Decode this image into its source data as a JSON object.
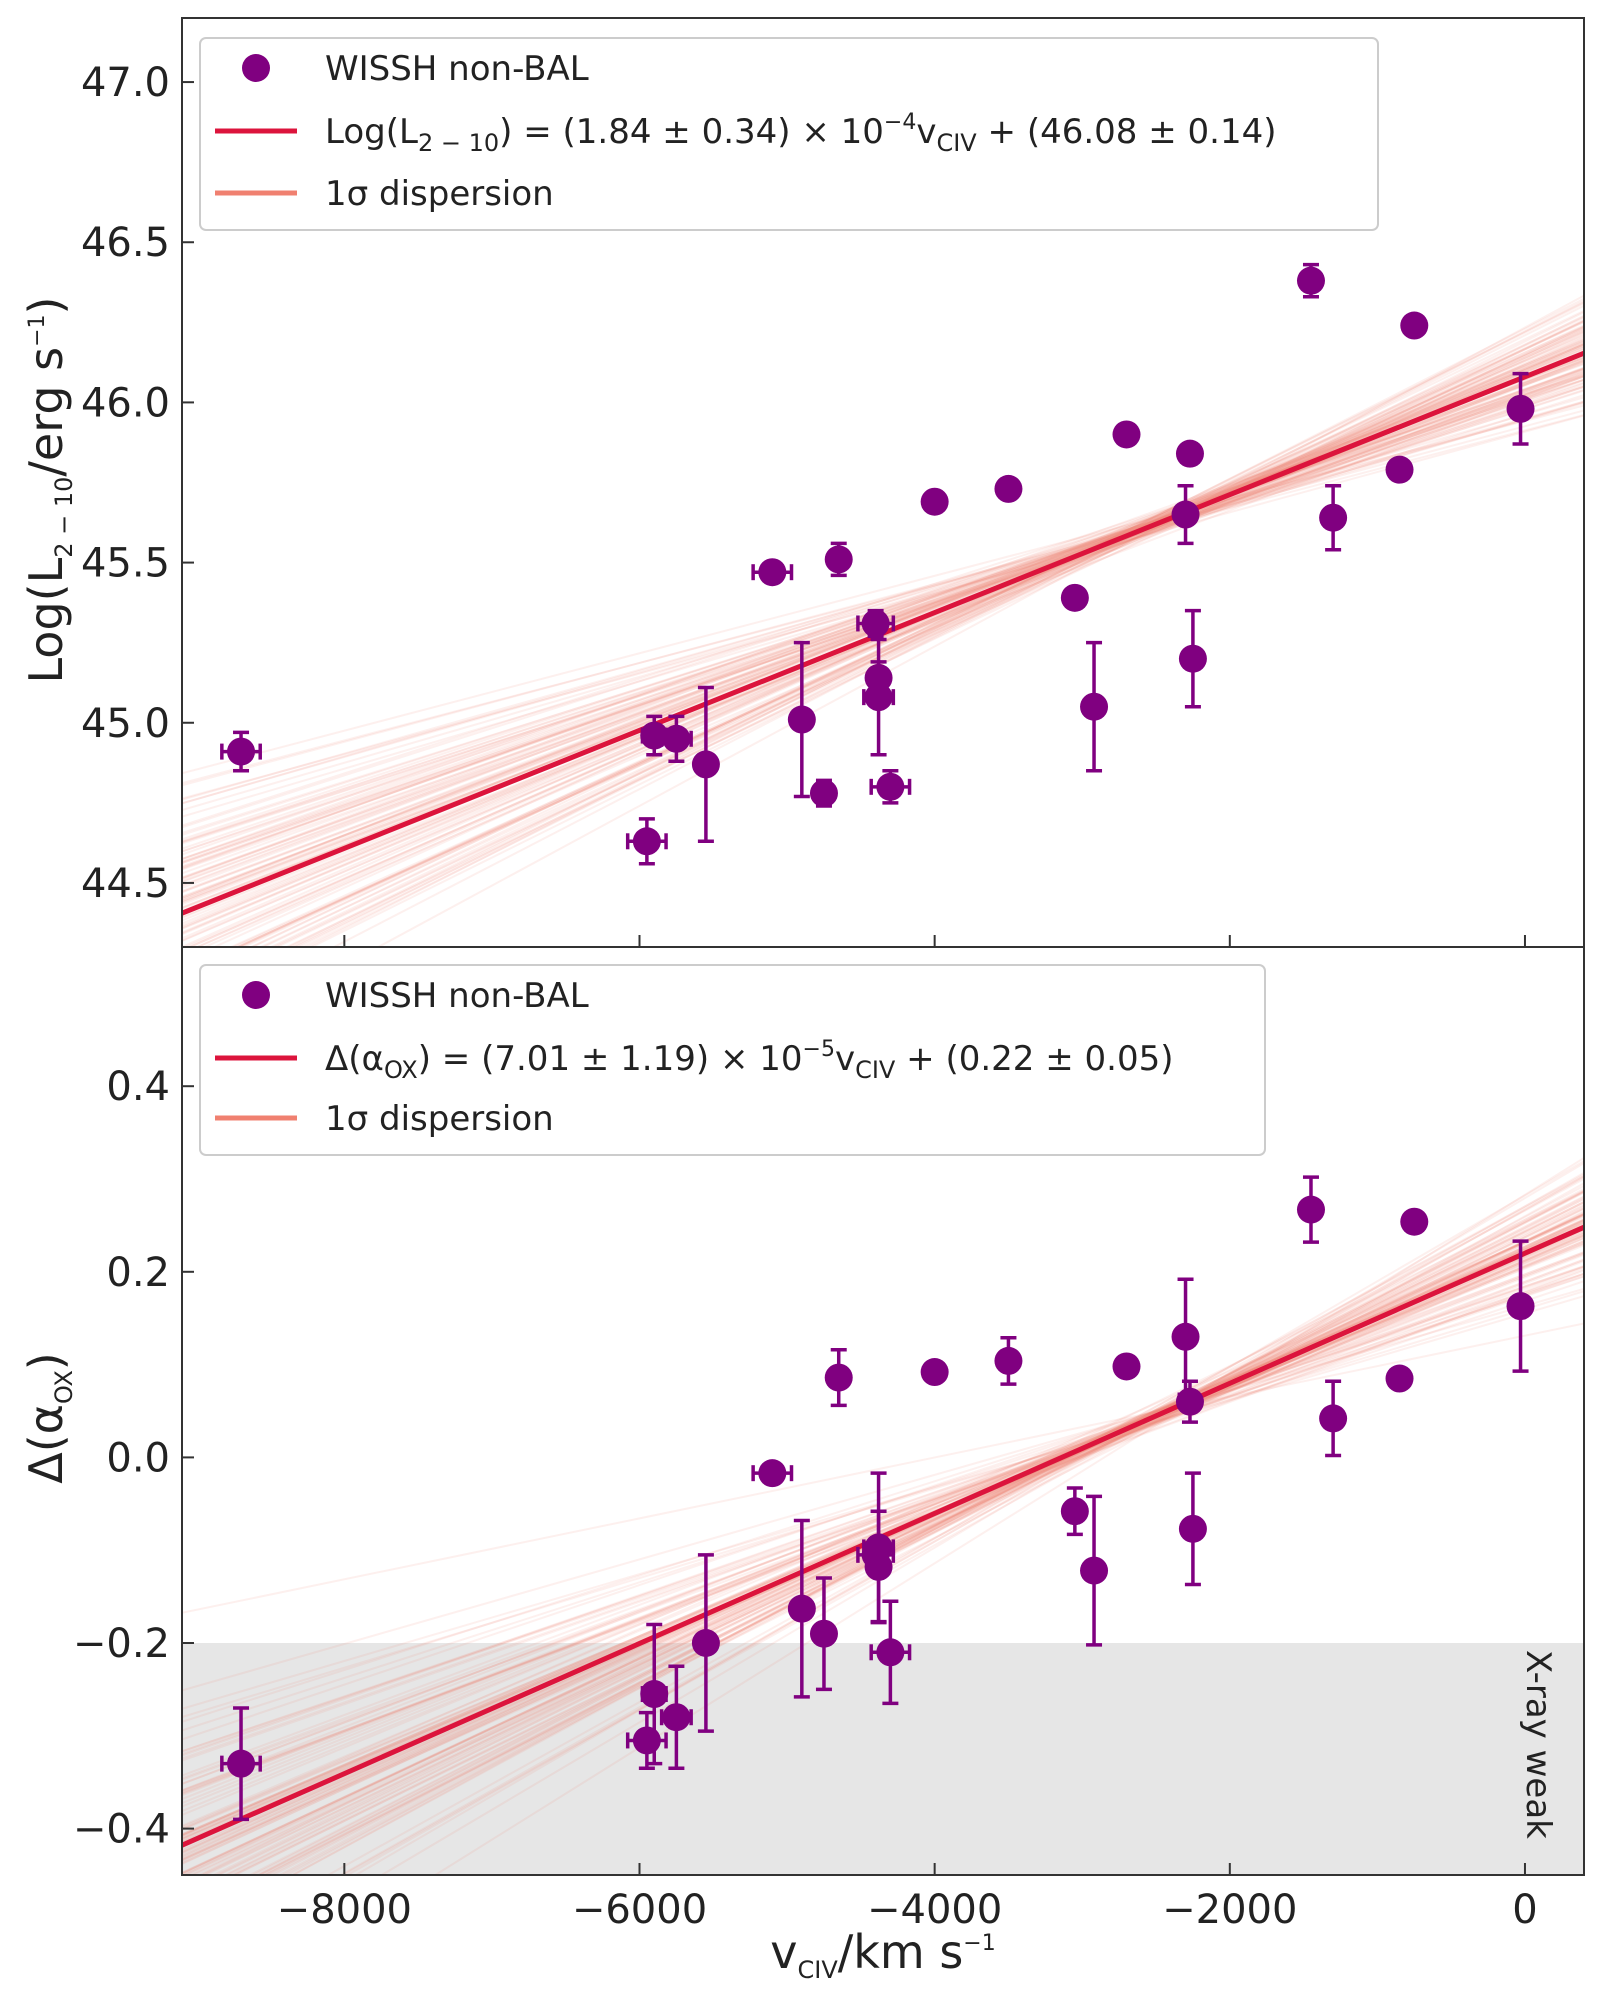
{
  "colors": {
    "marker": "#800080",
    "fit_line": "#dc143c",
    "dispersion": "#f08070",
    "shade": "#e6e6e6",
    "axis": "#333333"
  },
  "xaxis": {
    "label_main": "v",
    "label_sub": "CIV",
    "label_unit": "/km s",
    "label_sup": "−1",
    "ticks": [
      -8000,
      -6000,
      -4000,
      -2000,
      0
    ],
    "tick_labels": [
      "−8000",
      "−6000",
      "−4000",
      "−2000",
      "0"
    ]
  },
  "chart_data": [
    {
      "type": "scatter",
      "panel": "top",
      "ylabel": "Log(L2−10/erg s−1)",
      "ylabel_parts": {
        "pre": "Log(L",
        "sub": "2 − 10",
        "mid": "/erg s",
        "sup": "−1",
        "post": ")"
      },
      "xlabel": "vCIV/km s−1",
      "xlim": [
        -9100,
        400
      ],
      "ylim": [
        44.3,
        47.2
      ],
      "yticks": [
        44.5,
        45.0,
        45.5,
        46.0,
        46.5,
        47.0
      ],
      "ytick_labels": [
        "44.5",
        "45.0",
        "45.5",
        "46.0",
        "46.5",
        "47.0"
      ],
      "fit": {
        "slope": 0.000184,
        "intercept": 46.08,
        "slope_err": 3.4e-05,
        "intercept_err": 0.14
      },
      "legend": {
        "location": "top-left",
        "points_label": "WISSH non-BAL",
        "fit_label_parts": {
          "a": "Log(L",
          "a_sub": "2 − 10",
          "b": ") = (1.84 ± 0.34) × 10",
          "b_sup": "−4",
          "c": "v",
          "c_sub": "CIV",
          "d": " + (46.08 ± 0.14)"
        },
        "dispersion_label": "1σ dispersion"
      },
      "series": [
        {
          "name": "WISSH non-BAL",
          "x": [
            -8700,
            -5950,
            -5900,
            -5750,
            -5550,
            -5100,
            -4900,
            -4750,
            -4650,
            -4400,
            -4380,
            -4380,
            -4300,
            -4000,
            -3500,
            -3050,
            -2920,
            -2700,
            -2300,
            -2270,
            -2250,
            -1450,
            -1300,
            -850,
            -750,
            -30
          ],
          "y": [
            44.91,
            44.63,
            44.96,
            44.95,
            44.87,
            45.47,
            45.01,
            44.78,
            45.51,
            45.31,
            45.08,
            45.14,
            44.8,
            45.69,
            45.73,
            45.39,
            45.05,
            45.9,
            45.65,
            45.84,
            45.2,
            46.38,
            45.64,
            45.79,
            46.24,
            45.98
          ],
          "yerr": [
            0.06,
            0.07,
            0.06,
            0.07,
            0.24,
            0.03,
            0.24,
            0.04,
            0.05,
            0.04,
            0.18,
            0.05,
            0.05,
            0.02,
            0.03,
            0.02,
            0.2,
            0.02,
            0.09,
            0.03,
            0.15,
            0.05,
            0.1,
            0.02,
            0.02,
            0.11
          ],
          "xerr": [
            130,
            130,
            80,
            100,
            0,
            130,
            0,
            0,
            0,
            120,
            100,
            0,
            130,
            0,
            0,
            0,
            0,
            0,
            0,
            0,
            0,
            0,
            0,
            0,
            0,
            0
          ]
        }
      ]
    },
    {
      "type": "scatter",
      "panel": "bottom",
      "ylabel": "Δ(αOX)",
      "ylabel_parts": {
        "pre": "Δ(α",
        "sub": "OX",
        "post": ")"
      },
      "xlabel": "vCIV/km s−1",
      "xlim": [
        -9100,
        400
      ],
      "ylim": [
        -0.45,
        0.55
      ],
      "yticks": [
        -0.4,
        -0.2,
        0.0,
        0.2,
        0.4
      ],
      "ytick_labels": [
        "−0.4",
        "−0.2",
        "0.0",
        "0.2",
        "0.4"
      ],
      "shaded_region": {
        "y_from": -0.45,
        "y_to": -0.2,
        "label": "X-ray weak"
      },
      "fit": {
        "slope": 7.01e-05,
        "intercept": 0.22,
        "slope_err": 1.19e-05,
        "intercept_err": 0.05
      },
      "legend": {
        "location": "top-left",
        "points_label": "WISSH non-BAL",
        "fit_label_parts": {
          "a": "Δ(α",
          "a_sub": "OX",
          "b": ") = (7.01 ± 1.19) × 10",
          "b_sup": "−5",
          "c": "v",
          "c_sub": "CIV",
          "d": " + (0.22 ± 0.05)"
        },
        "dispersion_label": "1σ dispersion"
      },
      "series": [
        {
          "name": "WISSH non-BAL",
          "x": [
            -8700,
            -5950,
            -5900,
            -5750,
            -5550,
            -5100,
            -4900,
            -4750,
            -4650,
            -4400,
            -4380,
            -4380,
            -4300,
            -4000,
            -3500,
            -3050,
            -2920,
            -2700,
            -2300,
            -2270,
            -2250,
            -1450,
            -1300,
            -850,
            -750,
            -30
          ],
          "y": [
            -0.33,
            -0.305,
            -0.255,
            -0.28,
            -0.2,
            -0.017,
            -0.163,
            -0.19,
            0.086,
            -0.105,
            -0.097,
            -0.118,
            -0.21,
            0.092,
            0.104,
            -0.058,
            -0.122,
            0.098,
            0.13,
            0.06,
            -0.077,
            0.267,
            0.042,
            0.085,
            0.254,
            0.163
          ],
          "yerr": [
            0.06,
            0.03,
            0.075,
            0.055,
            0.095,
            0.01,
            0.095,
            0.06,
            0.03,
            0.015,
            0.08,
            0.06,
            0.055,
            0.005,
            0.025,
            0.025,
            0.08,
            0.005,
            0.062,
            0.022,
            0.06,
            0.035,
            0.04,
            0.005,
            0.005,
            0.07
          ],
          "xerr": [
            130,
            130,
            80,
            100,
            0,
            130,
            0,
            0,
            0,
            120,
            100,
            0,
            130,
            0,
            0,
            0,
            0,
            0,
            0,
            0,
            0,
            0,
            0,
            0,
            0,
            0
          ]
        }
      ]
    }
  ]
}
